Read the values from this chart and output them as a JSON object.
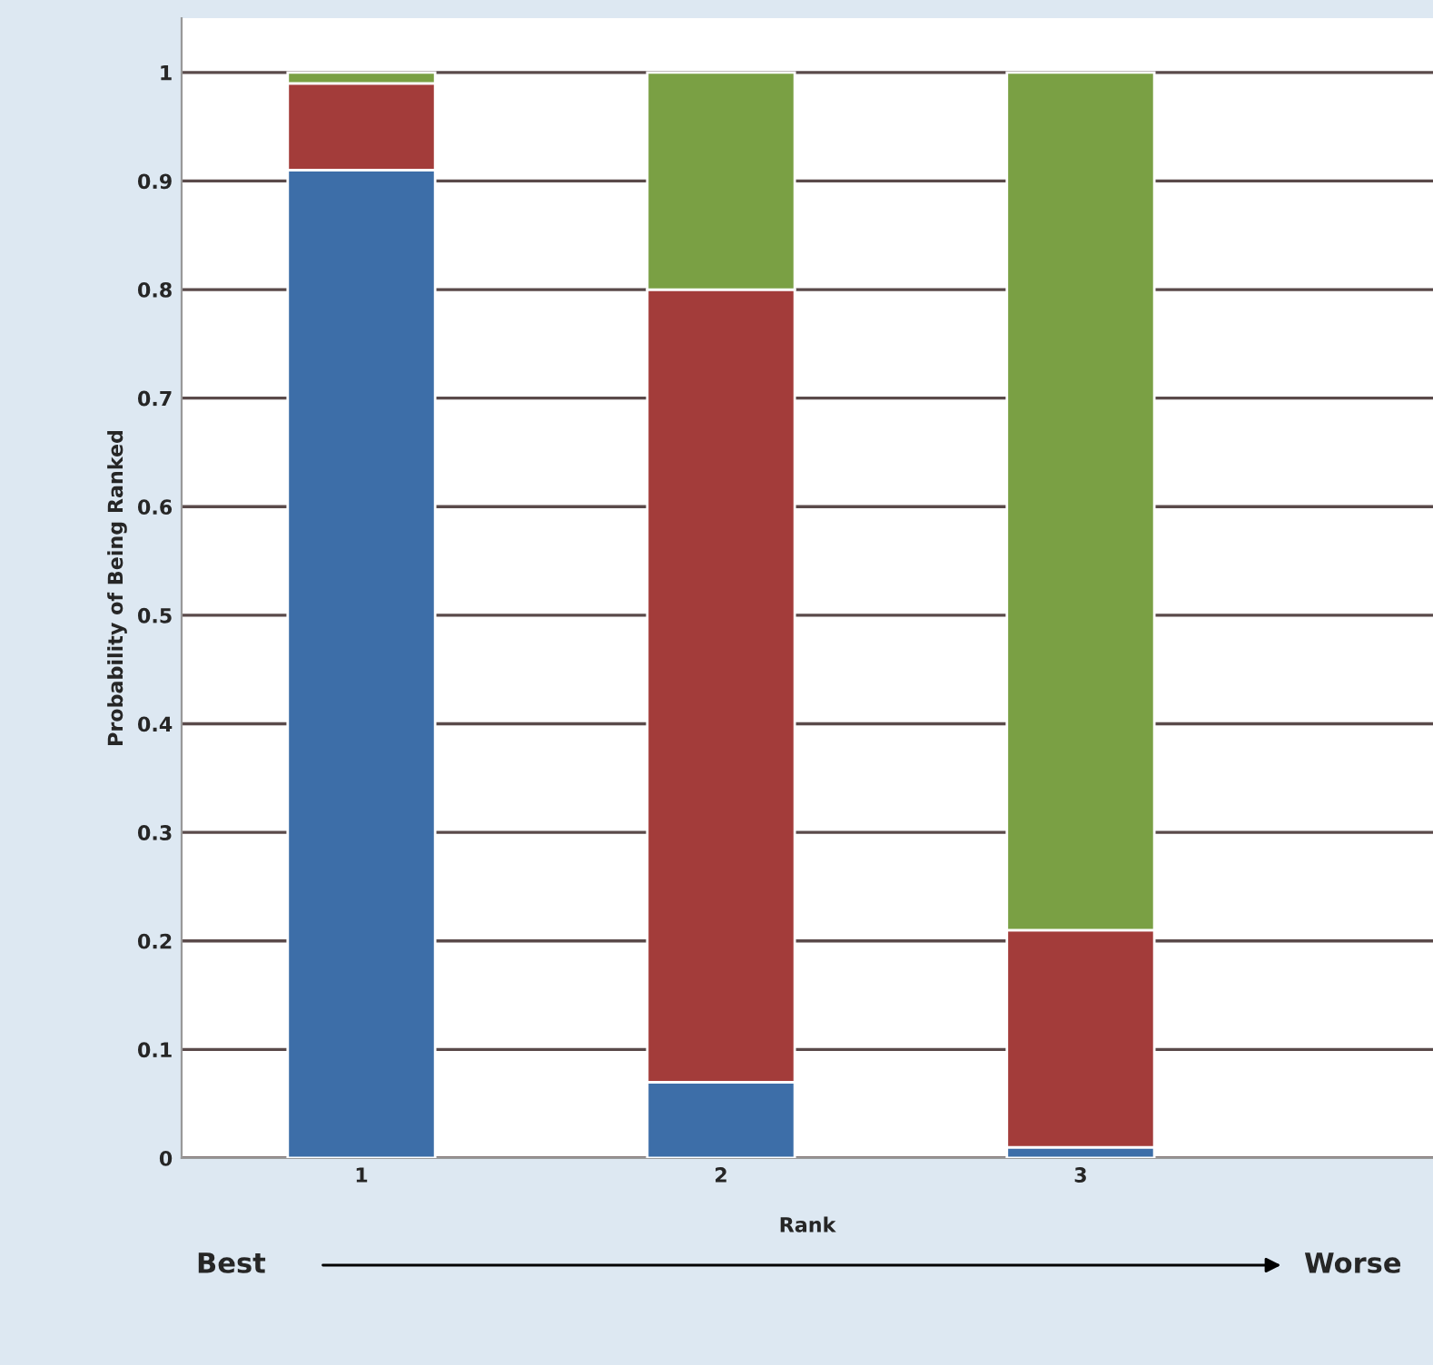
{
  "chart_data": {
    "type": "bar",
    "stacked": true,
    "xlabel": "Rank",
    "ylabel": "Probability of Being Ranked",
    "categories": [
      "1",
      "2",
      "3"
    ],
    "series": [
      {
        "color": "#3d6ea8",
        "values": [
          0.91,
          0.07,
          0.01
        ]
      },
      {
        "color": "#a33c3a",
        "values": [
          0.08,
          0.73,
          0.2
        ]
      },
      {
        "color": "#7aa044",
        "values": [
          0.01,
          0.2,
          0.79
        ]
      }
    ],
    "ylim": [
      0,
      1.05
    ],
    "yticks": [
      0,
      0.1,
      0.2,
      0.3,
      0.4,
      0.5,
      0.6,
      0.7,
      0.8,
      0.9,
      1
    ],
    "grid": "y",
    "legend": false,
    "annotations": [
      "Best",
      "Worse"
    ]
  }
}
